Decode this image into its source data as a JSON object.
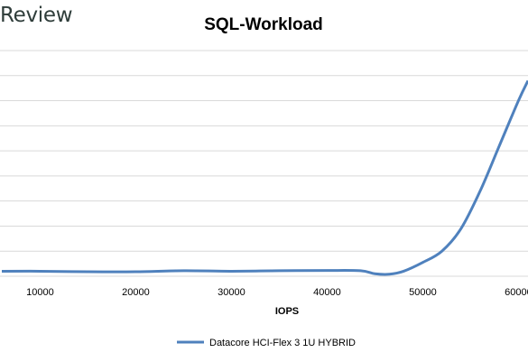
{
  "brand": "Review",
  "chart_data": {
    "type": "line",
    "title": "SQL-Workload",
    "xlabel": "IOPS",
    "ylabel": "",
    "xlim": [
      6000,
      61000
    ],
    "ylim": [
      0,
      9
    ],
    "x_ticks": [
      10000,
      20000,
      30000,
      40000,
      50000,
      60000
    ],
    "grid": true,
    "legend": "bottom",
    "series": [
      {
        "name": "Datacore HCI-Flex 3 1U HYBRID",
        "color": "#4f81bd",
        "x": [
          6000,
          10000,
          15000,
          20000,
          25000,
          30000,
          35000,
          40000,
          43500,
          45000,
          46500,
          48000,
          50000,
          52000,
          54000,
          56000,
          58000,
          60000,
          61000
        ],
        "y": [
          0.2,
          0.2,
          0.18,
          0.18,
          0.22,
          0.2,
          0.22,
          0.23,
          0.22,
          0.1,
          0.08,
          0.2,
          0.55,
          1.0,
          1.9,
          3.4,
          5.2,
          7.0,
          7.8
        ]
      }
    ]
  }
}
